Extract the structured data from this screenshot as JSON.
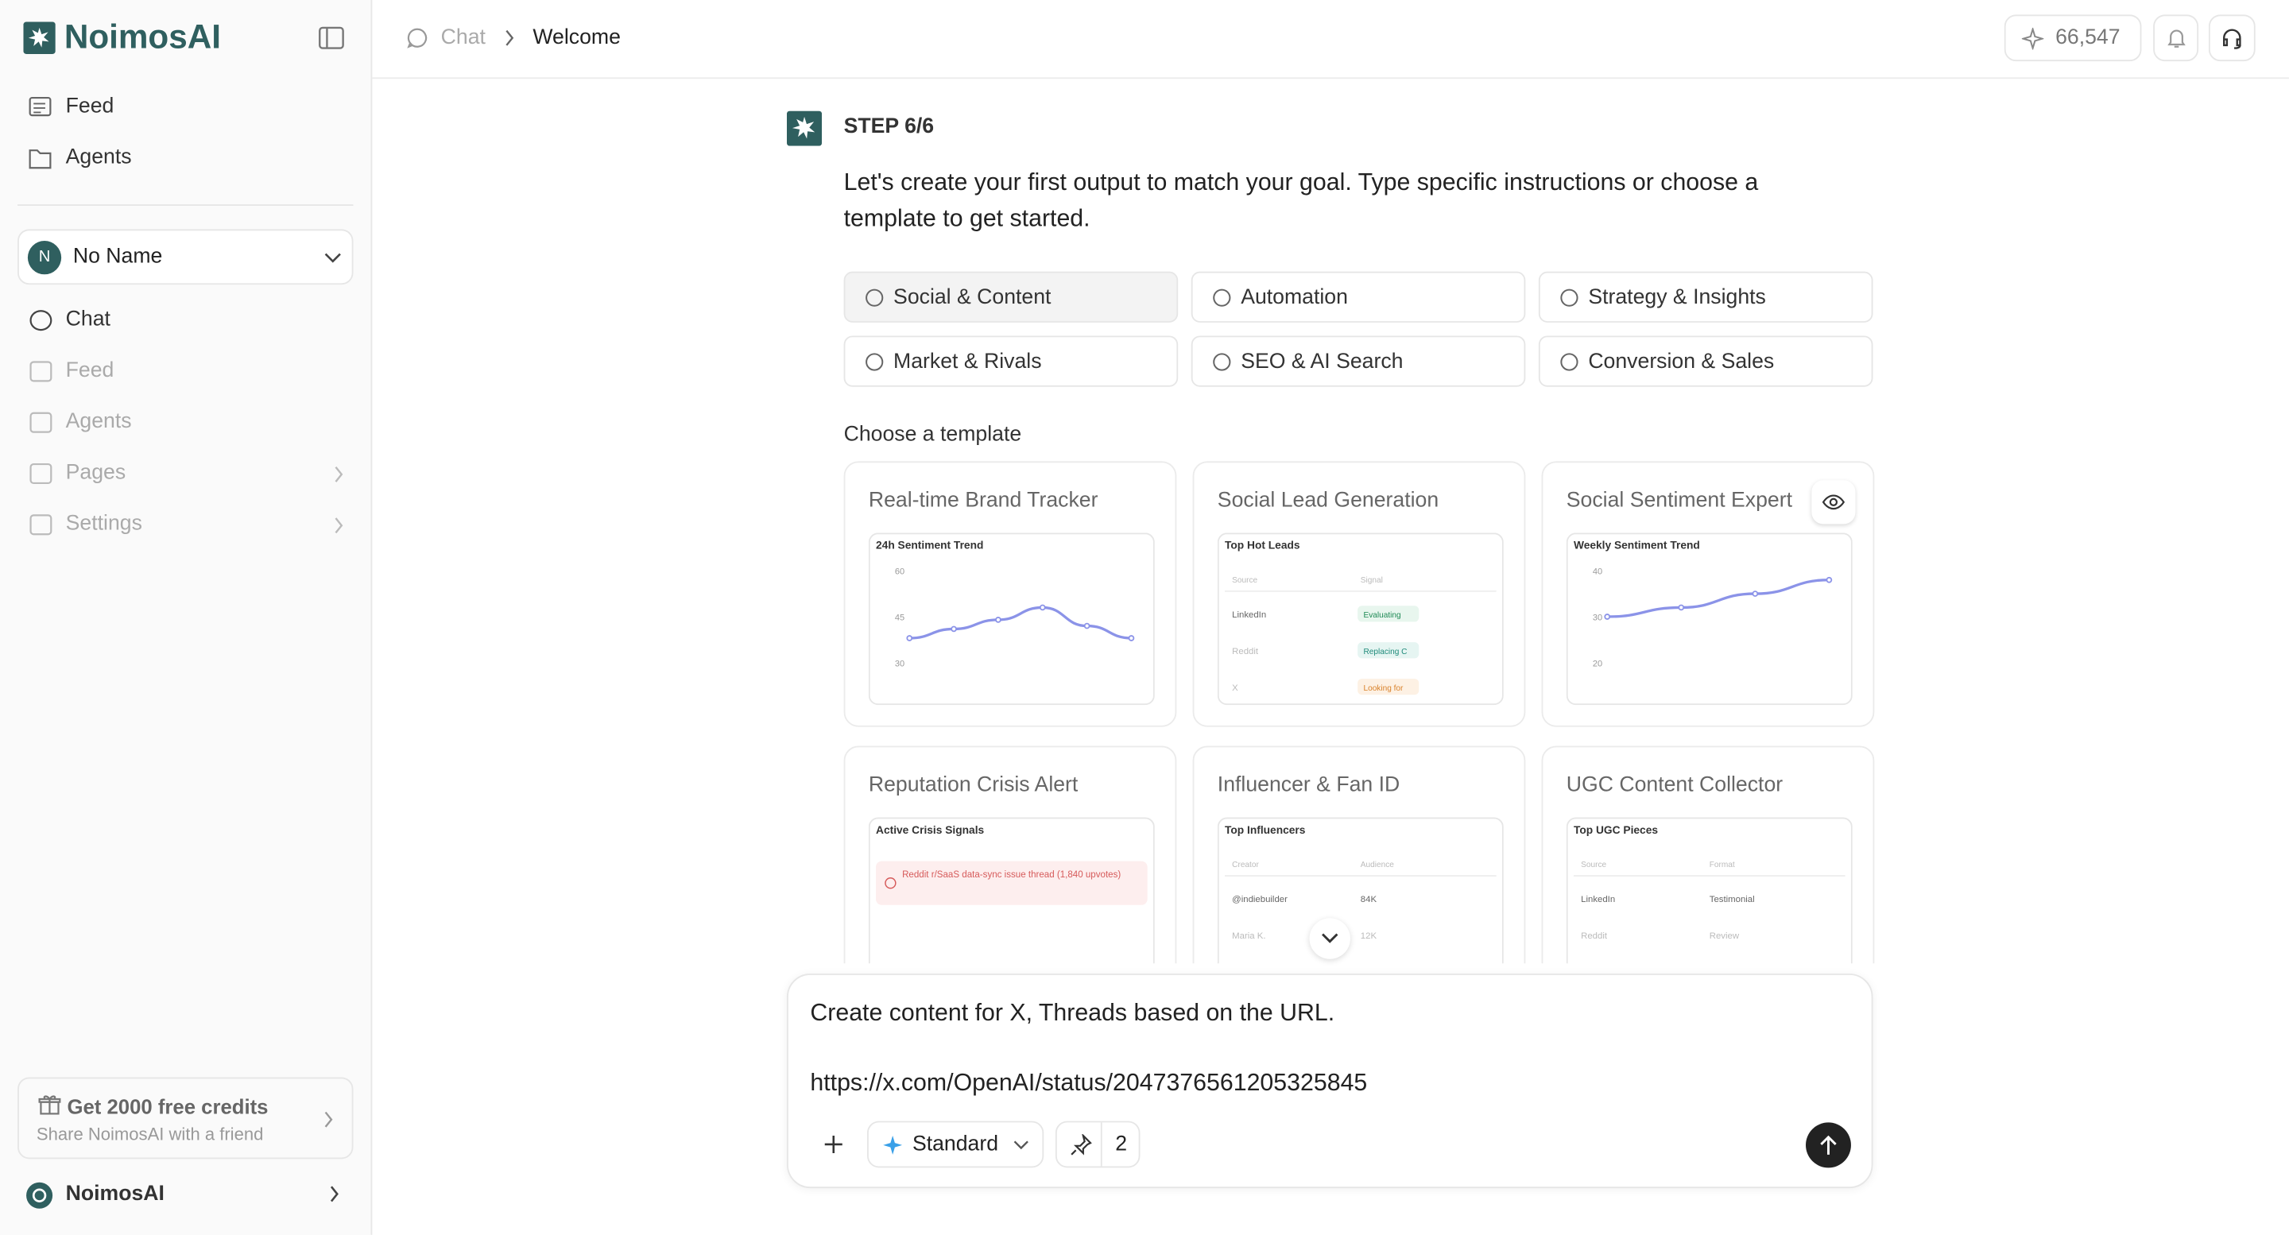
{
  "sidebar": {
    "brand": "NoimosAI",
    "nav": [
      "Feed",
      "Agents"
    ],
    "workspace": {
      "initial": "N",
      "name": "No Name"
    },
    "menu": [
      "Chat",
      "Feed",
      "Agents",
      "Pages",
      "Settings"
    ],
    "promo": {
      "title": "Get 2000 free credits",
      "subtitle": "Share NoimosAI with a friend"
    },
    "account": "NoimosAI"
  },
  "topbar": {
    "breadcrumb": [
      "Chat",
      "Welcome"
    ],
    "credits": "66,547"
  },
  "step": {
    "label": "STEP 6/6",
    "prompt": "Let's create your first output to match your goal. Type specific instructions or choose a template to get started."
  },
  "categories": [
    "Social & Content",
    "Automation",
    "Strategy & Insights",
    "Market & Rivals",
    "SEO & AI Search",
    "Conversion & Sales"
  ],
  "templates_heading": "Choose a template",
  "templates": [
    {
      "title": "Real-time Brand Tracker",
      "preview": {
        "type": "line",
        "title": "24h Sentiment Trend",
        "ylim": [
          30,
          60
        ],
        "yticks": [
          60,
          45,
          30
        ],
        "values": [
          38,
          41,
          44,
          48,
          42,
          38
        ]
      }
    },
    {
      "title": "Social Lead Generation",
      "preview": {
        "type": "table",
        "title": "Top Hot Leads",
        "headers": [
          "Source",
          "Signal"
        ],
        "rows": [
          [
            "LinkedIn",
            "Evaluating"
          ],
          [
            "Reddit",
            "Replacing C"
          ],
          [
            "X",
            "Looking for"
          ]
        ]
      }
    },
    {
      "title": "Social Sentiment Expert",
      "preview": {
        "type": "line",
        "title": "Weekly Sentiment Trend",
        "ylim": [
          20,
          40
        ],
        "yticks": [
          40,
          30,
          20
        ],
        "values": [
          30,
          32,
          35,
          38
        ]
      }
    },
    {
      "title": "Reputation Crisis Alert",
      "preview": {
        "type": "alert",
        "title": "Active Crisis Signals",
        "alert": "Reddit r/SaaS data-sync issue thread (1,840 upvotes)"
      }
    },
    {
      "title": "Influencer & Fan ID",
      "preview": {
        "type": "table",
        "title": "Top Influencers",
        "headers": [
          "Creator",
          "Audience"
        ],
        "rows": [
          [
            "@indiebuilder",
            "84K"
          ],
          [
            "Maria K.",
            "12K"
          ]
        ]
      }
    },
    {
      "title": "UGC Content Collector",
      "preview": {
        "type": "table",
        "title": "Top UGC Pieces",
        "headers": [
          "Source",
          "Format"
        ],
        "rows": [
          [
            "LinkedIn",
            "Testimonial"
          ],
          [
            "Reddit",
            "Review"
          ]
        ]
      }
    }
  ],
  "composer": {
    "lines": [
      "Create content for X, Threads based on the URL.",
      "https://x.com/OpenAI/status/2047376561205325845"
    ],
    "mode": "Standard",
    "count": "2"
  }
}
